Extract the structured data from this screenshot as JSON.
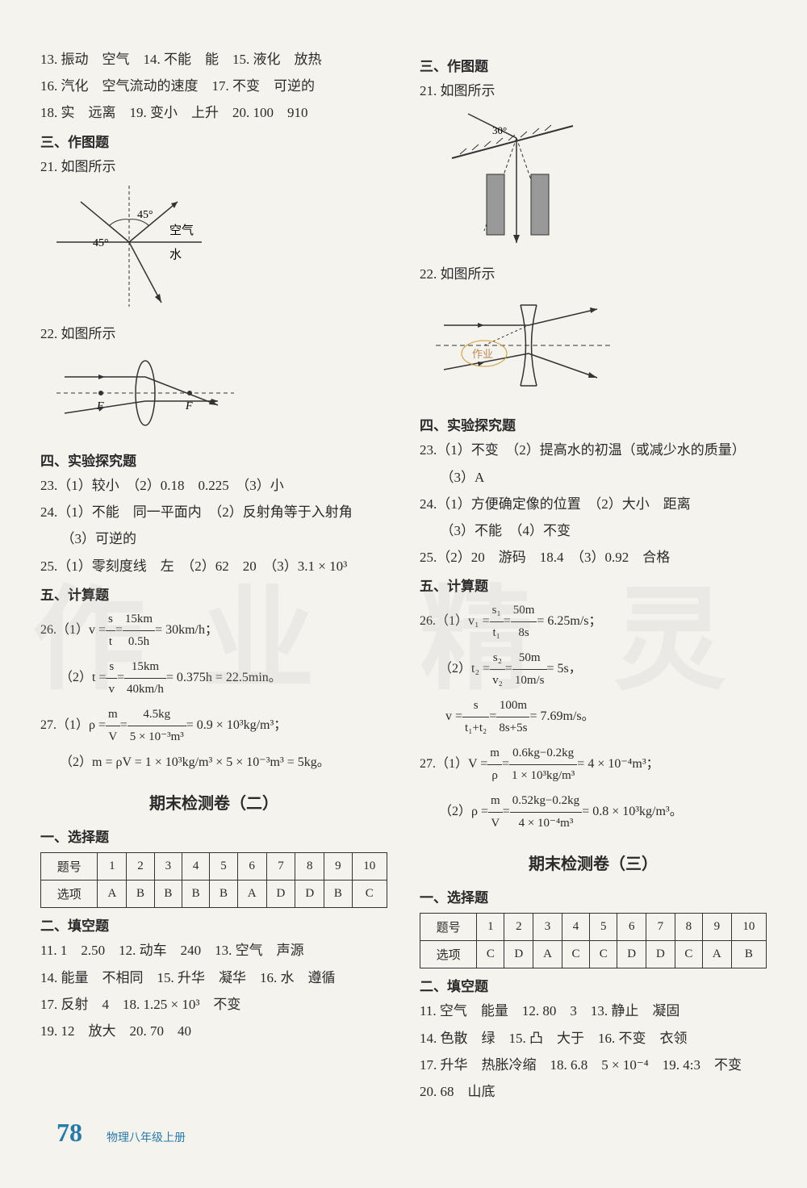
{
  "watermarks": [
    "作",
    "业",
    "精",
    "灵"
  ],
  "left": {
    "topLines": [
      "13. 振动　空气　14. 不能　能　15. 液化　放热",
      "16. 汽化　空气流动的速度　17. 不变　可逆的",
      "18. 实　远离　19. 变小　上升　20. 100　910"
    ],
    "sec3": "三、作图题",
    "q21": "21. 如图所示",
    "dia21": {
      "a1": "45°",
      "a2": "45°",
      "air": "空气",
      "water": "水"
    },
    "q22": "22. 如图所示",
    "dia22": {
      "F1": "F",
      "F2": "F"
    },
    "sec4": "四、实验探究题",
    "a23": "23.（1）较小　（2）0.18　0.225　（3）小",
    "a24a": "24.（1）不能　同一平面内　（2）反射角等于入射角",
    "a24b": "　　（3）可逆的",
    "a25": "25.（1）零刻度线　左　（2）62　20　（3）3.1 × 10³",
    "sec5": "五、计算题",
    "q26_1a": "26.（1）v = ",
    "q26_1b": " = 30km/h；",
    "q26_2a": "　　（2）t = ",
    "q26_2b": " = 0.375h = 22.5min。",
    "q27_1a": "27.（1）ρ = ",
    "q27_1b": " = 0.9 × 10³kg/m³；",
    "q27_2": "　　（2）m = ρV = 1 × 10³kg/m³ × 5 × 10⁻³m³ = 5kg。",
    "title2": "期末检测卷（二）",
    "sec1_2": "一、选择题",
    "table2": {
      "header": [
        "题号",
        "1",
        "2",
        "3",
        "4",
        "5",
        "6",
        "7",
        "8",
        "9",
        "10"
      ],
      "row": [
        "选项",
        "A",
        "B",
        "B",
        "B",
        "B",
        "A",
        "D",
        "D",
        "B",
        "C"
      ]
    },
    "sec2_2": "二、填空题",
    "fill2": [
      "11. 1　2.50　12. 动车　240　13. 空气　声源",
      "14. 能量　不相同　15. 升华　凝华　16. 水　遵循",
      "17. 反射　4　18. 1.25 × 10³　不变",
      "19. 12　放大　20. 70　40"
    ]
  },
  "right": {
    "sec3": "三、作图题",
    "q21": "21. 如图所示",
    "dia21_angle": "30°",
    "q22": "22. 如图所示",
    "dia22_label": "作业",
    "sec4": "四、实验探究题",
    "a23a": "23.（1）不变　（2）提高水的初温（或减少水的质量）",
    "a23b": "　　（3）A",
    "a24a": "24.（1）方便确定像的位置　（2）大小　距离",
    "a24b": "　　（3）不能　（4）不变",
    "a25": "25.（2）20　游码　18.4　（3）0.92　合格",
    "sec5": "五、计算题",
    "q26_1a": "26.（1）v₁ = ",
    "q26_1b": " = 6.25m/s；",
    "q26_2a": "　　（2）t₂ = ",
    "q26_2b": " = 5s，",
    "q26_va": "　　v = ",
    "q26_vb": " = 7.69m/s。",
    "q27_1a": "27.（1）V = ",
    "q27_1b": " = 4 × 10⁻⁴m³；",
    "q27_2a": "　　（2）ρ = ",
    "q27_2b": " = 0.8 × 10³kg/m³。",
    "title3": "期末检测卷（三）",
    "sec1_3": "一、选择题",
    "table3": {
      "header": [
        "题号",
        "1",
        "2",
        "3",
        "4",
        "5",
        "6",
        "7",
        "8",
        "9",
        "10"
      ],
      "row": [
        "选项",
        "C",
        "D",
        "A",
        "C",
        "C",
        "D",
        "D",
        "C",
        "A",
        "B"
      ]
    },
    "sec2_3": "二、填空题",
    "fill3": [
      "11. 空气　能量　12. 80　3　13. 静止　凝固",
      "14. 色散　绿　15. 凸　大于　16. 不变　衣领",
      "17. 升华　热胀冷缩　18. 6.8　5 × 10⁻⁴　19. 4:3　不变",
      "20. 68　山底"
    ]
  },
  "fracs": {
    "l26_1": {
      "n": "s",
      "d": "t",
      "n2": "15km",
      "d2": "0.5h"
    },
    "l26_2": {
      "n": "s",
      "d": "v",
      "n2": "15km",
      "d2": "40km/h"
    },
    "l27_1": {
      "n": "m",
      "d": "V",
      "n2": "4.5kg",
      "d2": "5 × 10⁻³m³"
    },
    "r26_1": {
      "n": "s₁",
      "d": "t₁",
      "n2": "50m",
      "d2": "8s"
    },
    "r26_2": {
      "n": "s₂",
      "d": "v₂",
      "n2": "50m",
      "d2": "10m/s"
    },
    "r26_v": {
      "n": "s",
      "d": "t₁+t₂",
      "n2": "100m",
      "d2": "8s+5s"
    },
    "r27_1": {
      "n": "m",
      "d": "ρ",
      "n2": "0.6kg−0.2kg",
      "d2": "1 × 10³kg/m³"
    },
    "r27_2": {
      "n": "m",
      "d": "V",
      "n2": "0.52kg−0.2kg",
      "d2": "4 × 10⁻⁴m³"
    }
  },
  "footer": {
    "page": "78",
    "label": "物理八年级上册"
  }
}
